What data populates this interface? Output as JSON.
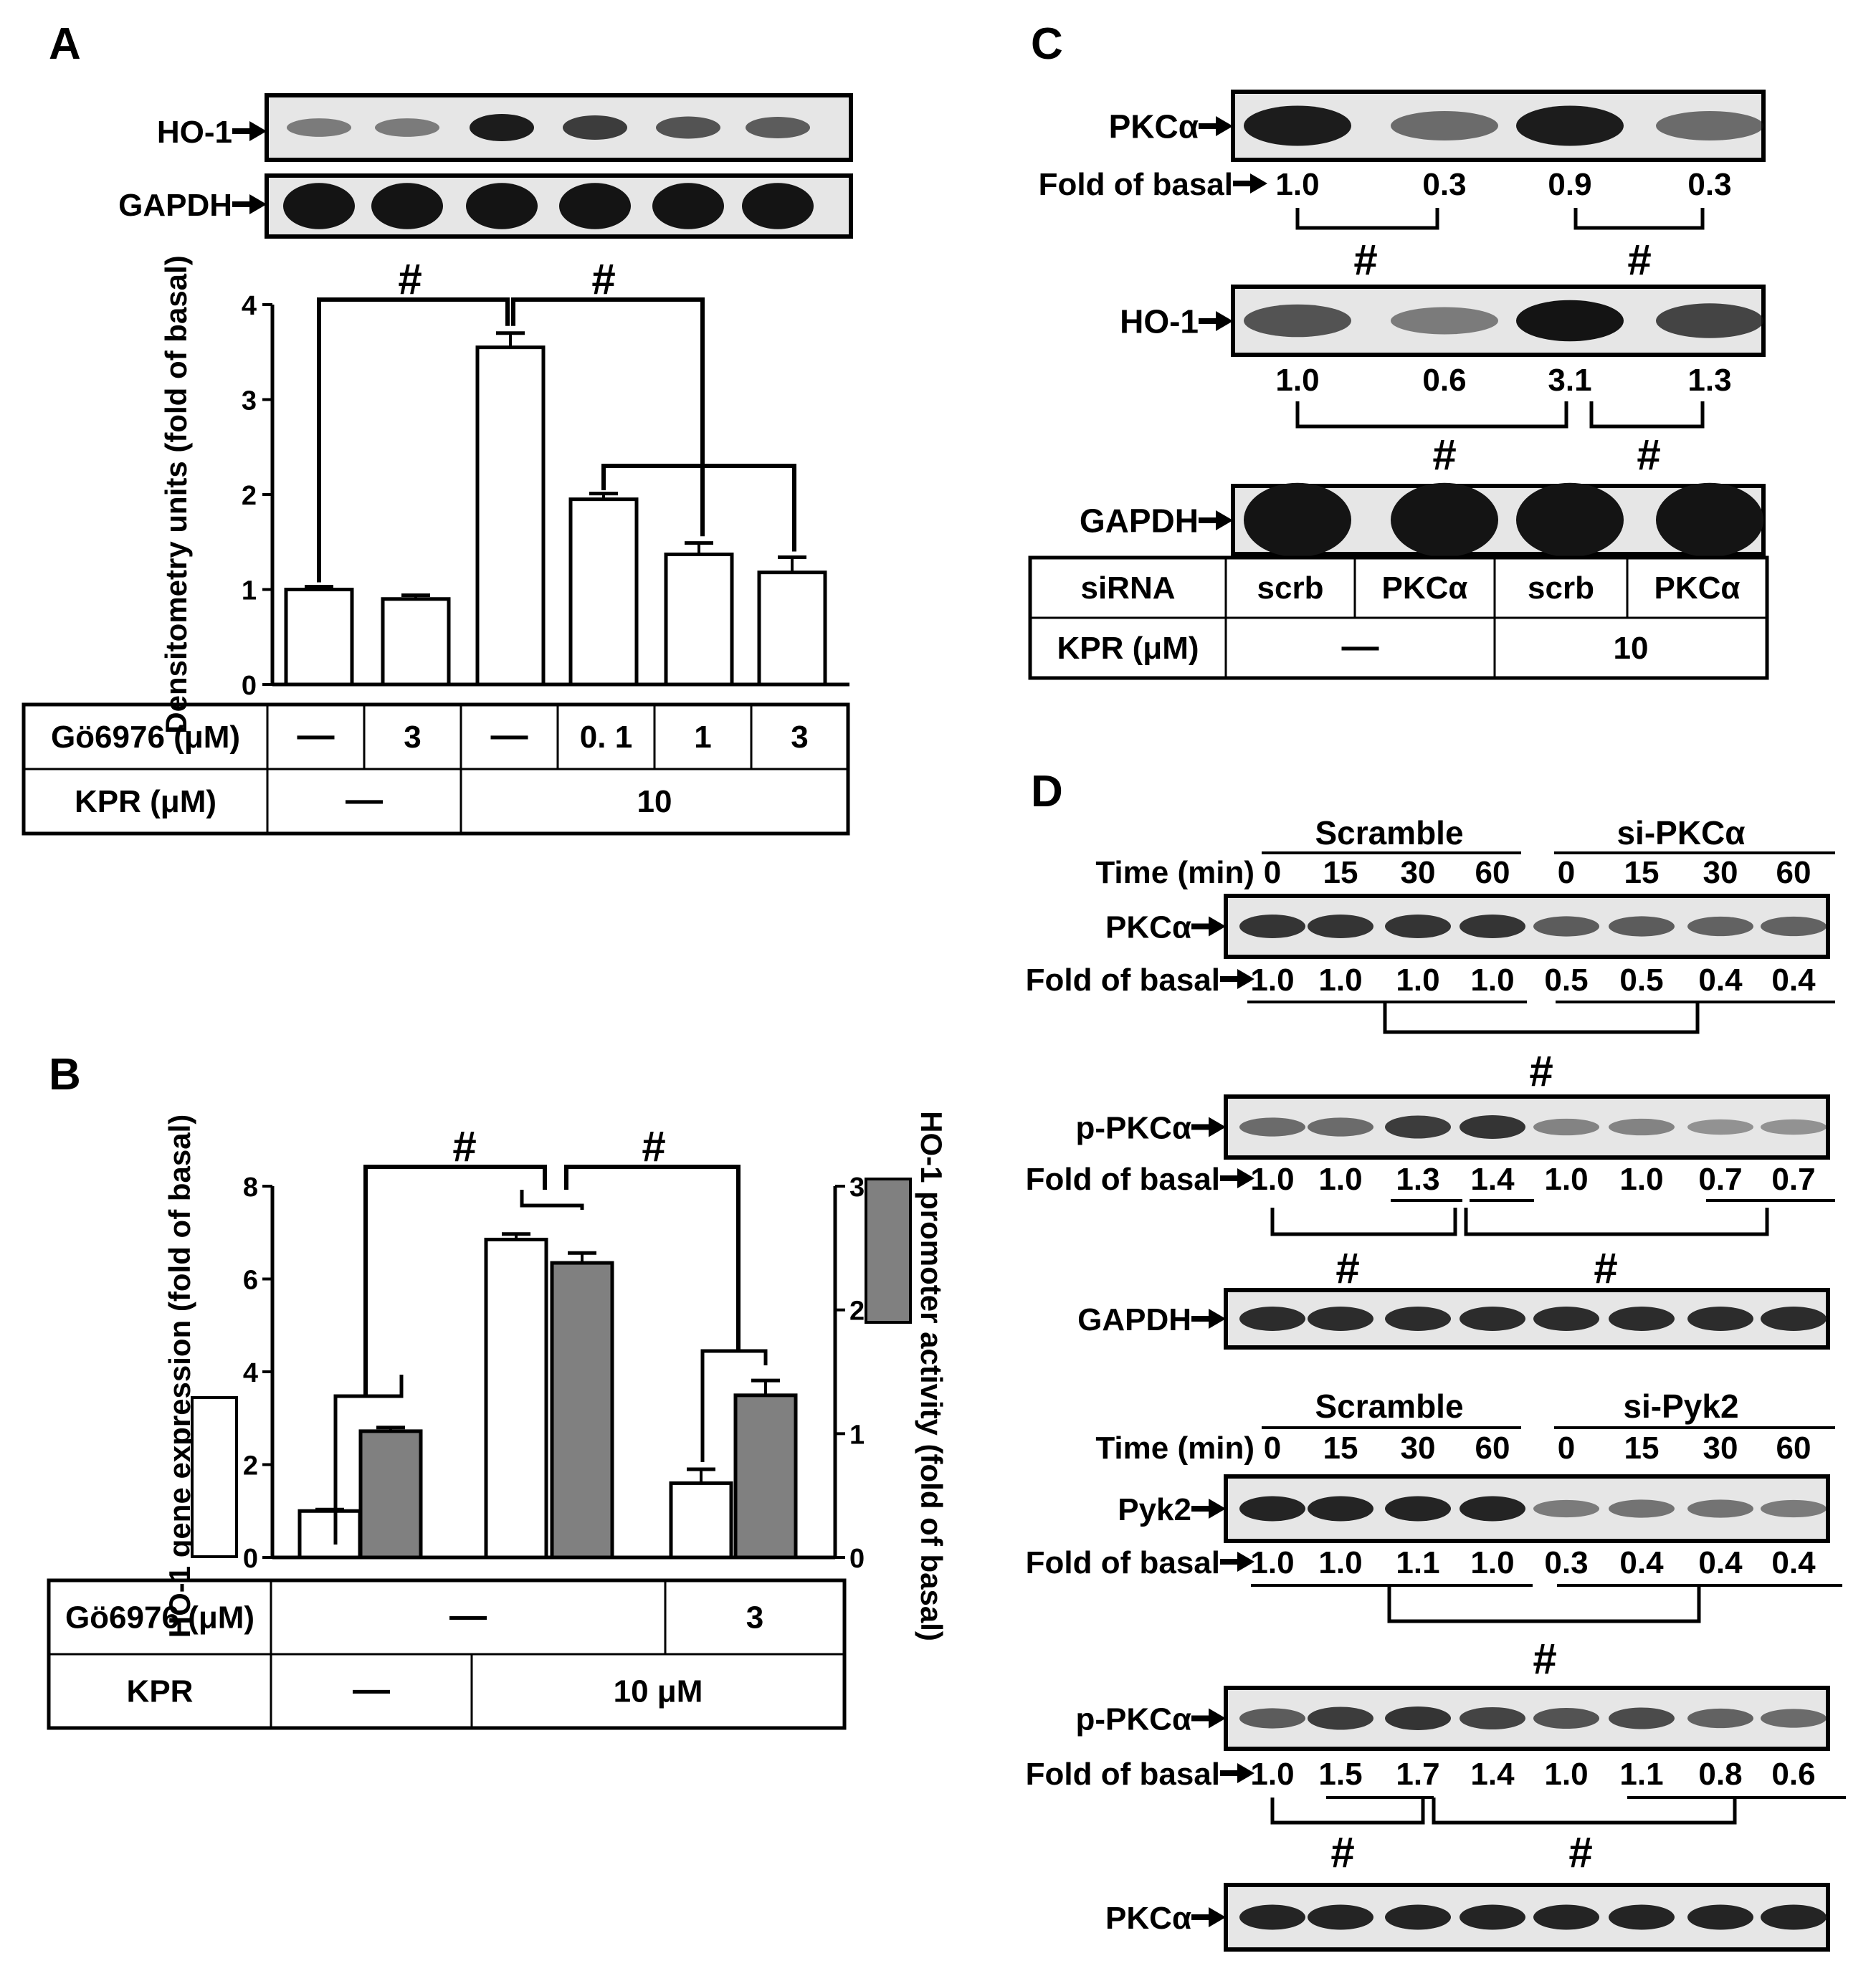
{
  "panels": {
    "a": "A",
    "b": "B",
    "c": "C",
    "d": "D"
  },
  "symbols": {
    "hash": "#",
    "dash": "—"
  },
  "colors": {
    "open_bar": "#ffffff",
    "gene_bar": "#ffffff",
    "promoter_bar": "#808080",
    "blot_bg": "#e6e6e6",
    "band": "#141414"
  },
  "panel_a": {
    "blots": [
      {
        "label": "HO-1",
        "intensity": [
          0.35,
          0.35,
          0.95,
          0.75,
          0.6,
          0.55
        ]
      },
      {
        "label": "GAPDH",
        "intensity": [
          1,
          1,
          1,
          1,
          1,
          1
        ]
      }
    ],
    "table": {
      "rows": [
        {
          "label": "Gö6976 (μM)",
          "cells": [
            "—",
            "3",
            "—",
            "0. 1",
            "1",
            "3"
          ]
        },
        {
          "label": "KPR (μM)",
          "cells": [
            "—",
            "10"
          ]
        }
      ]
    }
  },
  "panel_b": {
    "legend_swatches": [
      "open",
      "gray"
    ],
    "table": {
      "rows": [
        {
          "label": "Gö6976 (μM)",
          "cells": [
            "—",
            "3"
          ]
        },
        {
          "label": "KPR",
          "cells": [
            "—",
            "10 μM"
          ]
        }
      ]
    }
  },
  "panel_c": {
    "blots": [
      {
        "label": "PKCα",
        "intensity": [
          0.95,
          0.45,
          0.95,
          0.45
        ],
        "fold_label": "Fold of basal",
        "fold": [
          "1.0",
          "0.3",
          "0.9",
          "0.3"
        ]
      },
      {
        "label": "HO-1",
        "intensity": [
          0.6,
          0.35,
          1,
          0.7
        ],
        "fold_label": "",
        "fold": [
          "1.0",
          "0.6",
          "3.1",
          "1.3"
        ]
      },
      {
        "label": "GAPDH",
        "intensity": [
          1,
          1,
          1,
          1
        ],
        "fold_label": "",
        "fold": []
      }
    ],
    "table": {
      "rows": [
        {
          "label": "siRNA",
          "cells": [
            "scrb",
            "PKCα",
            "scrb",
            "PKCα"
          ]
        },
        {
          "label": "KPR (μM)",
          "cells": [
            "—",
            "10"
          ]
        }
      ]
    }
  },
  "panel_d": {
    "groups": [
      {
        "header": {
          "left": "Scramble",
          "right": "si-PKCα",
          "time_label": "Time (min)",
          "times": [
            "0",
            "15",
            "30",
            "60",
            "0",
            "15",
            "30",
            "60"
          ]
        },
        "blots": [
          {
            "label": "PKCα",
            "intensity": [
              0.8,
              0.8,
              0.8,
              0.8,
              0.55,
              0.55,
              0.5,
              0.5
            ],
            "fold_label": "Fold of basal",
            "fold": [
              "1.0",
              "1.0",
              "1.0",
              "1.0",
              "0.5",
              "0.5",
              "0.4",
              "0.4"
            ]
          },
          {
            "label": "p-PKCα",
            "intensity": [
              0.45,
              0.45,
              0.75,
              0.8,
              0.3,
              0.3,
              0.2,
              0.2
            ],
            "fold_label": "Fold of basal",
            "fold": [
              "1.0",
              "1.0",
              "1.3",
              "1.4",
              "1.0",
              "1.0",
              "0.7",
              "0.7"
            ]
          },
          {
            "label": "GAPDH",
            "intensity": [
              0.85,
              0.85,
              0.85,
              0.85,
              0.85,
              0.85,
              0.85,
              0.85
            ],
            "fold_label": "",
            "fold": []
          }
        ]
      },
      {
        "header": {
          "left": "Scramble",
          "right": "si-Pyk2",
          "time_label": "Time (min)",
          "times": [
            "0",
            "15",
            "30",
            "60",
            "0",
            "15",
            "30",
            "60"
          ]
        },
        "blots": [
          {
            "label": "Pyk2",
            "intensity": [
              0.9,
              0.9,
              0.9,
              0.9,
              0.35,
              0.4,
              0.4,
              0.35
            ],
            "fold_label": "Fold of basal",
            "fold": [
              "1.0",
              "1.0",
              "1.1",
              "1.0",
              "0.3",
              "0.4",
              "0.4",
              "0.4"
            ]
          },
          {
            "label": "p-PKCα",
            "intensity": [
              0.55,
              0.75,
              0.8,
              0.7,
              0.6,
              0.65,
              0.5,
              0.45
            ],
            "fold_label": "Fold of basal",
            "fold": [
              "1.0",
              "1.5",
              "1.7",
              "1.4",
              "1.0",
              "1.1",
              "0.8",
              "0.6"
            ]
          },
          {
            "label": "PKCα",
            "intensity": [
              0.9,
              0.9,
              0.9,
              0.9,
              0.9,
              0.9,
              0.9,
              0.9
            ],
            "fold_label": "",
            "fold": []
          }
        ]
      }
    ]
  },
  "chart_data": [
    {
      "type": "bar",
      "panel": "A",
      "ylabel": "Densitometry units (fold of basal)",
      "ylim": [
        0,
        4
      ],
      "yticks": [
        "0",
        "1",
        "2",
        "3",
        "4"
      ],
      "values": [
        1.0,
        0.9,
        3.55,
        1.95,
        1.37,
        1.18
      ],
      "errors": [
        0.03,
        0.04,
        0.15,
        0.06,
        0.12,
        0.16
      ]
    },
    {
      "type": "bar",
      "panel": "B",
      "ylabel_left": "HO-1 gene expression (fold of basal)",
      "ylabel_right": "HO-1 promoter activity (fold of basal)",
      "ylim_left": [
        0,
        8
      ],
      "ylim_right": [
        0,
        3
      ],
      "yticks_left": [
        "0",
        "2",
        "4",
        "6",
        "8"
      ],
      "yticks_right": [
        "0",
        "1",
        "2",
        "3"
      ],
      "series": [
        {
          "values": [
            1.0,
            6.85,
            1.6
          ],
          "errors": [
            0.03,
            0.12,
            0.3
          ],
          "axis": "left"
        },
        {
          "values": [
            1.02,
            2.38,
            1.31
          ],
          "errors": [
            0.03,
            0.08,
            0.12
          ],
          "axis": "right"
        }
      ]
    }
  ]
}
